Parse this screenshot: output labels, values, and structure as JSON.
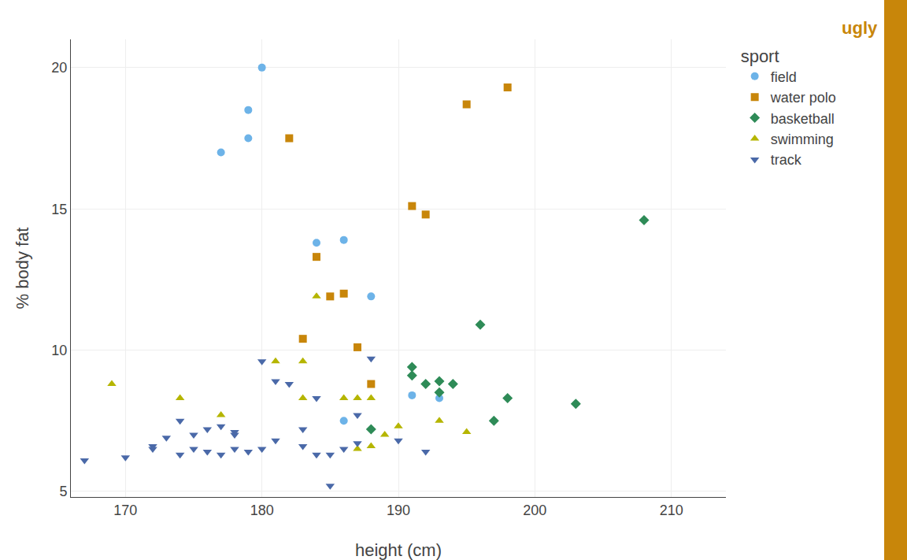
{
  "chart_data": {
    "type": "scatter",
    "x_label": "height (cm)",
    "y_label": "% body fat",
    "legend_title": "sport",
    "series": [
      {
        "name": "field",
        "color": "#6db3e8",
        "marker": "circle",
        "x": [
          179,
          179,
          180,
          184,
          186,
          188,
          191,
          193,
          177,
          186
        ],
        "values": [
          17.5,
          18.5,
          20.0,
          13.8,
          13.9,
          11.9,
          8.4,
          8.3,
          17.0,
          7.5
        ]
      },
      {
        "name": "water polo",
        "color": "#c8860a",
        "marker": "square",
        "x": [
          182,
          183,
          184,
          185,
          186,
          187,
          188,
          191,
          192,
          195,
          198
        ],
        "values": [
          17.5,
          10.4,
          13.3,
          11.9,
          12.0,
          10.1,
          8.8,
          15.1,
          14.8,
          18.7,
          19.3
        ]
      },
      {
        "name": "basketball",
        "color": "#2e8b57",
        "marker": "diamond",
        "x": [
          188,
          191,
          191,
          192,
          193,
          193,
          194,
          196,
          197,
          198,
          203,
          208
        ],
        "values": [
          7.2,
          9.4,
          9.1,
          8.8,
          8.9,
          8.5,
          8.8,
          10.9,
          7.5,
          8.3,
          8.1,
          14.6
        ]
      },
      {
        "name": "swimming",
        "color": "#b5b500",
        "marker": "triangle-up",
        "x": [
          169,
          174,
          177,
          181,
          183,
          183,
          184,
          186,
          187,
          187,
          188,
          188,
          189,
          190,
          193,
          195
        ],
        "values": [
          8.8,
          8.3,
          7.7,
          9.6,
          8.3,
          9.6,
          11.9,
          8.3,
          8.3,
          6.5,
          6.6,
          8.3,
          7.0,
          7.3,
          7.5,
          7.1
        ]
      },
      {
        "name": "track",
        "color": "#4a69a8",
        "marker": "triangle-down",
        "x": [
          167,
          170,
          172,
          172,
          173,
          174,
          174,
          175,
          175,
          176,
          176,
          177,
          177,
          178,
          178,
          178,
          179,
          180,
          180,
          181,
          181,
          182,
          183,
          183,
          184,
          184,
          185,
          185,
          186,
          187,
          187,
          188,
          190,
          192
        ],
        "values": [
          6.1,
          6.2,
          6.5,
          6.6,
          6.9,
          7.5,
          6.3,
          6.5,
          7.0,
          6.4,
          7.2,
          6.3,
          7.3,
          6.5,
          7.0,
          7.1,
          6.4,
          6.5,
          9.6,
          8.9,
          6.8,
          8.8,
          7.2,
          6.6,
          8.3,
          6.3,
          6.3,
          5.2,
          6.5,
          6.7,
          7.7,
          9.7,
          6.8,
          6.4
        ]
      }
    ],
    "xlim": [
      166,
      214
    ],
    "ylim": [
      4.8,
      21.0
    ],
    "xticks": [
      170,
      180,
      190,
      200,
      210
    ],
    "yticks": [
      5,
      10,
      15,
      20
    ],
    "grid": true,
    "legend": "upper right",
    "annotations": [
      {
        "text": "ugly",
        "color": "#c8860a"
      }
    ]
  }
}
